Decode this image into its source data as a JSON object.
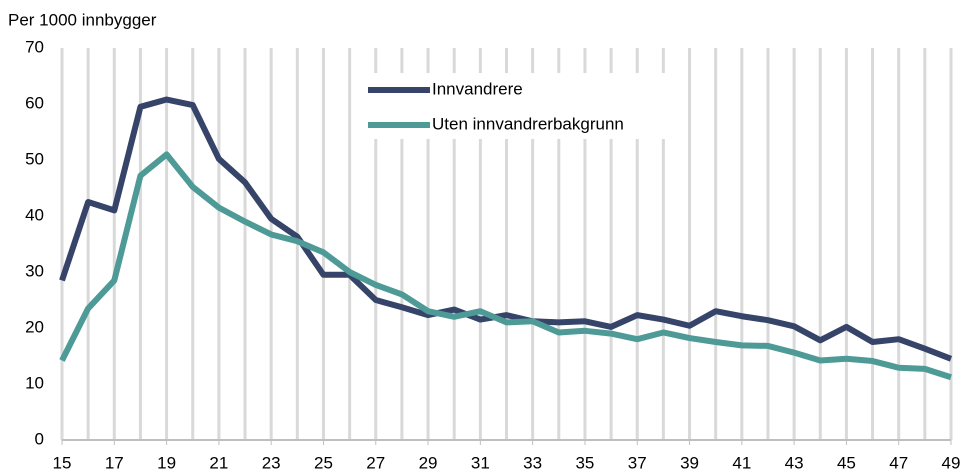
{
  "chart_data": {
    "type": "line",
    "y_label": "Per 1000 innbygger",
    "x": [
      15,
      16,
      17,
      18,
      19,
      20,
      21,
      22,
      23,
      24,
      25,
      26,
      27,
      28,
      29,
      30,
      31,
      32,
      33,
      34,
      35,
      36,
      37,
      38,
      39,
      40,
      41,
      42,
      43,
      44,
      45,
      46,
      47,
      48,
      49
    ],
    "series": [
      {
        "name": "Innvandrere",
        "color": "#354468",
        "values": [
          28.5,
          42.5,
          41,
          59.5,
          60.8,
          59.8,
          50.2,
          46,
          39.5,
          36.3,
          29.5,
          29.5,
          25,
          23.7,
          22.3,
          23.3,
          21.5,
          22.3,
          21.2,
          21,
          21.2,
          20.2,
          22.3,
          21.5,
          20.4,
          23,
          22.1,
          21.4,
          20.3,
          17.8,
          20.2,
          17.5,
          18,
          16.3,
          14.5
        ]
      },
      {
        "name": "Uten innvandrerbakgrunn",
        "color": "#4e9a96",
        "values": [
          14.2,
          23.5,
          28.5,
          47.2,
          51,
          45.2,
          41.5,
          39,
          36.7,
          35.5,
          33.5,
          30,
          27.7,
          26,
          23,
          22,
          23,
          21,
          21.2,
          19.2,
          19.5,
          19,
          18,
          19.2,
          18.2,
          17.5,
          16.9,
          16.8,
          15.6,
          14.2,
          14.5,
          14.1,
          12.9,
          12.7,
          11.2
        ]
      }
    ],
    "xlim": [
      15,
      49
    ],
    "xticks": [
      15,
      17,
      19,
      21,
      23,
      25,
      27,
      29,
      31,
      33,
      35,
      37,
      39,
      41,
      43,
      45,
      47,
      49
    ],
    "ylim": [
      0,
      70
    ],
    "yticks": [
      0,
      10,
      20,
      30,
      40,
      50,
      60,
      70
    ],
    "grid": "x",
    "legend": "top"
  }
}
